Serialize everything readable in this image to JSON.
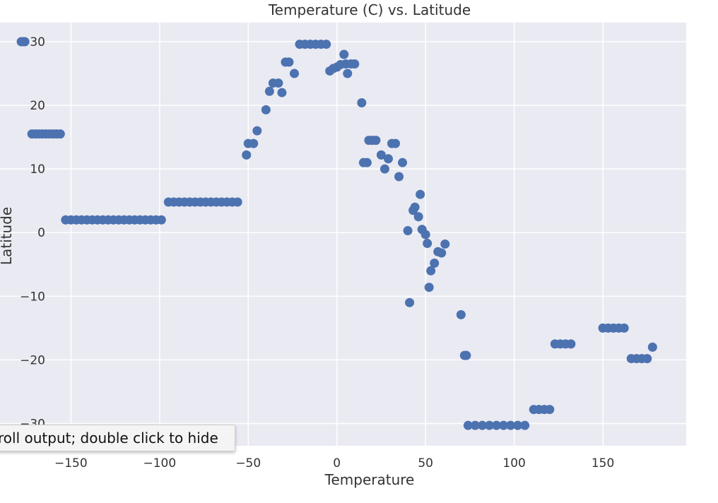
{
  "tooltip": {
    "text": "roll output; double click to hide"
  },
  "colors": {
    "background": "#eaeaf2",
    "grid": "#ffffff",
    "marker": "#4c72b0"
  },
  "chart_data": {
    "type": "scatter",
    "title": "Temperature (C) vs. Latitude",
    "xlabel": "Temperature",
    "ylabel": "Latitude",
    "xlim": [
      -190,
      197
    ],
    "ylim": [
      -33.5,
      33
    ],
    "xticks": [
      -150,
      -100,
      -50,
      0,
      50,
      100,
      150
    ],
    "yticks": [
      -30,
      -20,
      -10,
      0,
      10,
      20,
      30
    ],
    "xtick_labels": [
      "−150",
      "−100",
      "−50",
      "0",
      "50",
      "100",
      "150"
    ],
    "ytick_labels": [
      "−30",
      "−20",
      "−10",
      "0",
      "10",
      "20",
      "30"
    ],
    "grid": true,
    "points": [
      [
        -178,
        30
      ],
      [
        -177,
        30
      ],
      [
        -176,
        30
      ],
      [
        -172,
        15.5
      ],
      [
        -170,
        15.5
      ],
      [
        -168,
        15.5
      ],
      [
        -166,
        15.5
      ],
      [
        -164,
        15.5
      ],
      [
        -162,
        15.5
      ],
      [
        -160,
        15.5
      ],
      [
        -158,
        15.5
      ],
      [
        -156,
        15.5
      ],
      [
        -153,
        2
      ],
      [
        -150,
        2
      ],
      [
        -147,
        2
      ],
      [
        -144,
        2
      ],
      [
        -141,
        2
      ],
      [
        -138,
        2
      ],
      [
        -135,
        2
      ],
      [
        -132,
        2
      ],
      [
        -129,
        2
      ],
      [
        -126,
        2
      ],
      [
        -123,
        2
      ],
      [
        -120,
        2
      ],
      [
        -117,
        2
      ],
      [
        -114,
        2
      ],
      [
        -111,
        2
      ],
      [
        -108,
        2
      ],
      [
        -105,
        2
      ],
      [
        -102,
        2
      ],
      [
        -99,
        2
      ],
      [
        -95,
        4.8
      ],
      [
        -92,
        4.8
      ],
      [
        -89,
        4.8
      ],
      [
        -86,
        4.8
      ],
      [
        -83,
        4.8
      ],
      [
        -80,
        4.8
      ],
      [
        -77,
        4.8
      ],
      [
        -74,
        4.8
      ],
      [
        -71,
        4.8
      ],
      [
        -68,
        4.8
      ],
      [
        -65,
        4.8
      ],
      [
        -62,
        4.8
      ],
      [
        -59,
        4.8
      ],
      [
        -56,
        4.8
      ],
      [
        -51,
        12.2
      ],
      [
        -50,
        14
      ],
      [
        -47,
        14
      ],
      [
        -45,
        16
      ],
      [
        -40,
        19.3
      ],
      [
        -38,
        22.2
      ],
      [
        -36,
        23.5
      ],
      [
        -33,
        23.5
      ],
      [
        -31,
        22
      ],
      [
        -29,
        26.8
      ],
      [
        -27,
        26.8
      ],
      [
        -24,
        25
      ],
      [
        -21,
        29.6
      ],
      [
        -18,
        29.6
      ],
      [
        -15,
        29.6
      ],
      [
        -12,
        29.6
      ],
      [
        -9,
        29.6
      ],
      [
        -6,
        29.6
      ],
      [
        -4,
        25.4
      ],
      [
        -2,
        25.8
      ],
      [
        0,
        26
      ],
      [
        2,
        26.4
      ],
      [
        4,
        28
      ],
      [
        5,
        26.5
      ],
      [
        6,
        25
      ],
      [
        8,
        26.5
      ],
      [
        10,
        26.5
      ],
      [
        14,
        20.4
      ],
      [
        15,
        11
      ],
      [
        17,
        11
      ],
      [
        18,
        14.5
      ],
      [
        20,
        14.5
      ],
      [
        22,
        14.5
      ],
      [
        25,
        12.2
      ],
      [
        27,
        10
      ],
      [
        29,
        11.6
      ],
      [
        31,
        14
      ],
      [
        33,
        14
      ],
      [
        35,
        8.8
      ],
      [
        37,
        11
      ],
      [
        40,
        0.3
      ],
      [
        41,
        -11
      ],
      [
        43,
        3.5
      ],
      [
        44,
        4
      ],
      [
        46,
        2.5
      ],
      [
        47,
        6
      ],
      [
        48,
        0.5
      ],
      [
        50,
        -0.3
      ],
      [
        51,
        -1.7
      ],
      [
        52,
        -8.6
      ],
      [
        53,
        -6
      ],
      [
        55,
        -4.8
      ],
      [
        57,
        -3
      ],
      [
        59,
        -3.2
      ],
      [
        61,
        -1.8
      ],
      [
        70,
        -12.9
      ],
      [
        72,
        -19.3
      ],
      [
        73,
        -19.3
      ],
      [
        74,
        -30.3
      ],
      [
        78,
        -30.3
      ],
      [
        82,
        -30.3
      ],
      [
        86,
        -30.3
      ],
      [
        90,
        -30.3
      ],
      [
        94,
        -30.3
      ],
      [
        98,
        -30.3
      ],
      [
        102,
        -30.3
      ],
      [
        106,
        -30.3
      ],
      [
        111,
        -27.8
      ],
      [
        114,
        -27.8
      ],
      [
        117,
        -27.8
      ],
      [
        120,
        -27.8
      ],
      [
        123,
        -17.5
      ],
      [
        126,
        -17.5
      ],
      [
        129,
        -17.5
      ],
      [
        132,
        -17.5
      ],
      [
        150,
        -15
      ],
      [
        153,
        -15
      ],
      [
        156,
        -15
      ],
      [
        159,
        -15
      ],
      [
        162,
        -15
      ],
      [
        166,
        -19.8
      ],
      [
        169,
        -19.8
      ],
      [
        172,
        -19.8
      ],
      [
        175,
        -19.8
      ],
      [
        178,
        -18
      ]
    ]
  }
}
